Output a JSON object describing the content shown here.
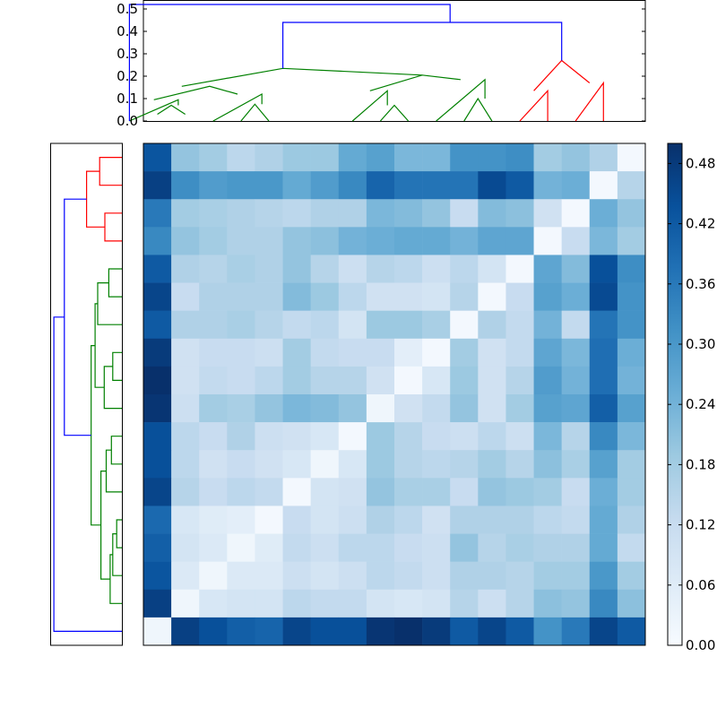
{
  "chart_data": [
    {
      "type": "dendrogram",
      "orientation": "top",
      "ylim": [
        0,
        0.55
      ],
      "yticks": [
        "0.0",
        "0.1",
        "0.2",
        "0.3",
        "0.4",
        "0.5"
      ],
      "links": [
        {
          "color": "#008000",
          "x": [
            0,
            0.5,
            0.5,
            1
          ],
          "y": [
            0.03,
            0.07,
            0.07,
            0.03
          ]
        },
        {
          "color": "#008000",
          "x": [
            -1,
            0.75,
            0.75,
            0.75
          ],
          "y": [
            0,
            0.095,
            0.095,
            0.07
          ]
        },
        {
          "color": "#008000",
          "x": [
            3,
            3.5,
            3.5,
            4
          ],
          "y": [
            0,
            0.075,
            0.075,
            0
          ]
        },
        {
          "color": "#008000",
          "x": [
            2,
            3.75,
            3.75,
            3.75
          ],
          "y": [
            0,
            0.12,
            0.12,
            0.075
          ]
        },
        {
          "color": "#008000",
          "x": [
            -0.125,
            1.875,
            1.875,
            2.875
          ],
          "y": [
            0.095,
            0.155,
            0.155,
            0.12
          ]
        },
        {
          "color": "#008000",
          "x": [
            8,
            8.5,
            8.5,
            9
          ],
          "y": [
            0,
            0.07,
            0.07,
            0
          ]
        },
        {
          "color": "#008000",
          "x": [
            7,
            8.25,
            8.25,
            8.25
          ],
          "y": [
            0,
            0.135,
            0.135,
            0.07
          ]
        },
        {
          "color": "#008000",
          "x": [
            11,
            11.5,
            11.5,
            12
          ],
          "y": [
            0,
            0.1,
            0.1,
            0
          ]
        },
        {
          "color": "#008000",
          "x": [
            10,
            11.75,
            11.75,
            11.75
          ],
          "y": [
            0,
            0.185,
            0.185,
            0.1
          ]
        },
        {
          "color": "#008000",
          "x": [
            7.625,
            9.5,
            9.5,
            10.875
          ],
          "y": [
            0.135,
            0.205,
            0.205,
            0.185
          ]
        },
        {
          "color": "#008000",
          "x": [
            0.875,
            4.5,
            4.5,
            9.5
          ],
          "y": [
            0.155,
            0.235,
            0.235,
            0.205
          ]
        },
        {
          "color": "#ff0000",
          "x": [
            13,
            14,
            14,
            14
          ],
          "y": [
            0,
            0.135,
            0.135,
            0
          ]
        },
        {
          "color": "#ff0000",
          "x": [
            15,
            16,
            16,
            16
          ],
          "y": [
            0,
            0.17,
            0.17,
            0
          ]
        },
        {
          "color": "#ff0000",
          "x": [
            13.5,
            14.5,
            14.5,
            15.5
          ],
          "y": [
            0.135,
            0.27,
            0.27,
            0.17
          ]
        },
        {
          "color": "#0000ff",
          "x": [
            4.5,
            4.5,
            14.5,
            14.5
          ],
          "y": [
            0.235,
            0.44,
            0.44,
            0.27
          ]
        },
        {
          "color": "#0000ff",
          "x": [
            -1,
            -1,
            10.5,
            10.5
          ],
          "y": [
            0,
            0.52,
            0.52,
            0.44
          ]
        }
      ]
    },
    {
      "type": "dendrogram",
      "orientation": "left",
      "xlim": [
        0,
        0.55
      ],
      "links": [
        {
          "color": "#ff0000",
          "y": [
            0,
            0,
            1,
            1
          ],
          "x": [
            0,
            0.17,
            0.17,
            0
          ]
        },
        {
          "color": "#ff0000",
          "y": [
            2,
            2,
            3,
            3
          ],
          "x": [
            0,
            0.13,
            0.13,
            0
          ]
        },
        {
          "color": "#ff0000",
          "y": [
            0.5,
            0.5,
            2.5,
            2.5
          ],
          "x": [
            0.17,
            0.27,
            0.27,
            0.13
          ]
        },
        {
          "color": "#008000",
          "y": [
            4,
            4,
            5,
            5
          ],
          "x": [
            0,
            0.1,
            0.1,
            0
          ]
        },
        {
          "color": "#008000",
          "y": [
            6,
            6,
            4.5,
            4.5
          ],
          "x": [
            0,
            0.185,
            0.185,
            0.1
          ]
        },
        {
          "color": "#008000",
          "y": [
            7,
            7,
            8,
            8
          ],
          "x": [
            0,
            0.07,
            0.07,
            0
          ]
        },
        {
          "color": "#008000",
          "y": [
            9,
            9,
            7.5,
            7.5
          ],
          "x": [
            0,
            0.135,
            0.135,
            0.07
          ]
        },
        {
          "color": "#008000",
          "y": [
            5.25,
            5.25,
            8.25,
            8.25
          ],
          "x": [
            0.185,
            0.205,
            0.205,
            0.135
          ]
        },
        {
          "color": "#008000",
          "y": [
            10,
            10,
            11,
            11
          ],
          "x": [
            0,
            0.08,
            0.08,
            0
          ]
        },
        {
          "color": "#008000",
          "y": [
            12,
            12,
            10.5,
            10.5
          ],
          "x": [
            0,
            0.12,
            0.12,
            0.08
          ]
        },
        {
          "color": "#008000",
          "y": [
            13,
            13,
            14,
            14
          ],
          "x": [
            0,
            0.04,
            0.04,
            0
          ]
        },
        {
          "color": "#008000",
          "y": [
            15,
            15,
            13.5,
            13.5
          ],
          "x": [
            0,
            0.07,
            0.07,
            0.04
          ]
        },
        {
          "color": "#008000",
          "y": [
            16,
            16,
            14.25,
            14.25
          ],
          "x": [
            0,
            0.09,
            0.09,
            0.07
          ]
        },
        {
          "color": "#008000",
          "y": [
            11.25,
            11.25,
            15.125,
            15.125
          ],
          "x": [
            0.12,
            0.16,
            0.16,
            0.09
          ]
        },
        {
          "color": "#008000",
          "y": [
            6.75,
            6.75,
            13.1875,
            13.1875
          ],
          "x": [
            0.205,
            0.235,
            0.235,
            0.16
          ]
        },
        {
          "color": "#0000ff",
          "y": [
            1.5,
            1.5,
            9.97,
            9.97
          ],
          "x": [
            0.27,
            0.44,
            0.44,
            0.235
          ]
        },
        {
          "color": "#0000ff",
          "y": [
            5.73,
            5.73,
            17,
            17
          ],
          "x": [
            0.44,
            0.52,
            0.52,
            0
          ]
        }
      ]
    },
    {
      "type": "heatmap",
      "nrows": 18,
      "ncols": 18,
      "vmin": 0,
      "vmax": 0.5,
      "values": [
        [
          0.43,
          0.2,
          0.18,
          0.14,
          0.16,
          0.19,
          0.19,
          0.26,
          0.28,
          0.23,
          0.23,
          0.31,
          0.31,
          0.32,
          0.18,
          0.2,
          0.16,
          0.01
        ],
        [
          0.47,
          0.32,
          0.29,
          0.3,
          0.3,
          0.26,
          0.29,
          0.33,
          0.4,
          0.37,
          0.37,
          0.37,
          0.45,
          0.42,
          0.24,
          0.25,
          0.01,
          0.15
        ],
        [
          0.36,
          0.18,
          0.17,
          0.16,
          0.15,
          0.14,
          0.16,
          0.16,
          0.23,
          0.22,
          0.2,
          0.12,
          0.22,
          0.21,
          0.1,
          0.01,
          0.25,
          0.2
        ],
        [
          0.33,
          0.2,
          0.18,
          0.16,
          0.16,
          0.2,
          0.21,
          0.24,
          0.25,
          0.26,
          0.26,
          0.24,
          0.27,
          0.27,
          0.01,
          0.12,
          0.23,
          0.18
        ],
        [
          0.42,
          0.16,
          0.15,
          0.17,
          0.16,
          0.2,
          0.15,
          0.11,
          0.15,
          0.14,
          0.11,
          0.14,
          0.09,
          0.01,
          0.27,
          0.22,
          0.44,
          0.32
        ],
        [
          0.46,
          0.12,
          0.16,
          0.16,
          0.16,
          0.22,
          0.19,
          0.14,
          0.1,
          0.1,
          0.09,
          0.15,
          0.01,
          0.12,
          0.28,
          0.25,
          0.45,
          0.31
        ],
        [
          0.42,
          0.16,
          0.16,
          0.17,
          0.15,
          0.13,
          0.14,
          0.09,
          0.19,
          0.19,
          0.17,
          0.01,
          0.16,
          0.13,
          0.24,
          0.13,
          0.37,
          0.31
        ],
        [
          0.48,
          0.1,
          0.12,
          0.12,
          0.11,
          0.18,
          0.13,
          0.12,
          0.12,
          0.05,
          0.01,
          0.18,
          0.1,
          0.13,
          0.27,
          0.23,
          0.38,
          0.25
        ],
        [
          0.5,
          0.1,
          0.13,
          0.12,
          0.14,
          0.18,
          0.15,
          0.15,
          0.1,
          0.01,
          0.08,
          0.19,
          0.1,
          0.15,
          0.29,
          0.24,
          0.38,
          0.24
        ],
        [
          0.49,
          0.11,
          0.18,
          0.17,
          0.2,
          0.23,
          0.22,
          0.2,
          0.02,
          0.1,
          0.13,
          0.2,
          0.1,
          0.18,
          0.28,
          0.27,
          0.41,
          0.28
        ],
        [
          0.44,
          0.14,
          0.12,
          0.16,
          0.11,
          0.1,
          0.08,
          0.01,
          0.19,
          0.15,
          0.12,
          0.11,
          0.14,
          0.11,
          0.23,
          0.15,
          0.33,
          0.23
        ],
        [
          0.44,
          0.14,
          0.1,
          0.12,
          0.1,
          0.08,
          0.02,
          0.08,
          0.19,
          0.15,
          0.14,
          0.15,
          0.18,
          0.15,
          0.21,
          0.17,
          0.28,
          0.18
        ],
        [
          0.46,
          0.15,
          0.12,
          0.14,
          0.13,
          0.01,
          0.09,
          0.1,
          0.2,
          0.17,
          0.17,
          0.12,
          0.2,
          0.19,
          0.18,
          0.12,
          0.25,
          0.18
        ],
        [
          0.39,
          0.08,
          0.06,
          0.05,
          0.01,
          0.12,
          0.09,
          0.11,
          0.16,
          0.14,
          0.1,
          0.16,
          0.16,
          0.16,
          0.14,
          0.13,
          0.26,
          0.16
        ],
        [
          0.41,
          0.09,
          0.07,
          0.02,
          0.06,
          0.13,
          0.11,
          0.14,
          0.14,
          0.12,
          0.11,
          0.2,
          0.15,
          0.17,
          0.16,
          0.16,
          0.26,
          0.13
        ],
        [
          0.43,
          0.07,
          0.02,
          0.07,
          0.07,
          0.11,
          0.09,
          0.11,
          0.14,
          0.13,
          0.11,
          0.16,
          0.16,
          0.15,
          0.18,
          0.18,
          0.3,
          0.18
        ],
        [
          0.47,
          0.02,
          0.08,
          0.09,
          0.09,
          0.14,
          0.13,
          0.13,
          0.09,
          0.08,
          0.09,
          0.15,
          0.11,
          0.15,
          0.21,
          0.2,
          0.33,
          0.21
        ],
        [
          0.02,
          0.47,
          0.44,
          0.41,
          0.4,
          0.46,
          0.44,
          0.44,
          0.49,
          0.5,
          0.48,
          0.42,
          0.46,
          0.42,
          0.31,
          0.36,
          0.46,
          0.42
        ]
      ]
    },
    {
      "type": "colorbar",
      "colormap": "Blues",
      "range": [
        0,
        0.5
      ],
      "ticks": [
        {
          "value": 0.0,
          "label": "0.00"
        },
        {
          "value": 0.06,
          "label": "0.06"
        },
        {
          "value": 0.12,
          "label": "0.12"
        },
        {
          "value": 0.18,
          "label": "0.18"
        },
        {
          "value": 0.24,
          "label": "0.24"
        },
        {
          "value": 0.3,
          "label": "0.30"
        },
        {
          "value": 0.36,
          "label": "0.36"
        },
        {
          "value": 0.42,
          "label": "0.42"
        },
        {
          "value": 0.48,
          "label": "0.48"
        }
      ]
    }
  ]
}
